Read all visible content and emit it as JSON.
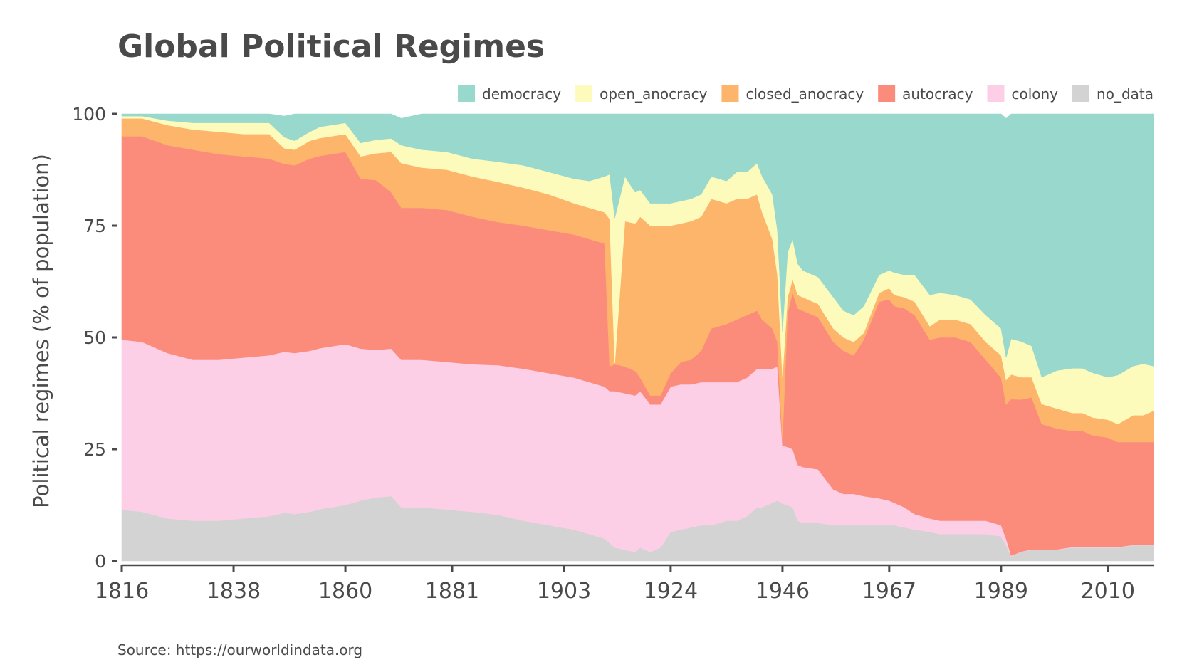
{
  "chart_data": {
    "type": "area",
    "stacked": true,
    "title": "Global Political Regimes",
    "xlabel": "",
    "ylabel": "Political regimes (% of population)",
    "xlim": [
      1816,
      2019
    ],
    "ylim": [
      0,
      100
    ],
    "yticks": [
      0,
      25,
      50,
      75,
      100
    ],
    "ytick_labels": [
      "0",
      "25",
      "50",
      "75",
      "100"
    ],
    "xticks": [
      1816,
      1838,
      1860,
      1881,
      1903,
      1924,
      1946,
      1967,
      1989,
      2010
    ],
    "xtick_labels": [
      "1816",
      "1838",
      "1860",
      "1881",
      "1903",
      "1924",
      "1946",
      "1967",
      "1989",
      "2010"
    ],
    "legend_position": "top-right",
    "source": "Source: https://ourworldindata.org",
    "x": [
      1816,
      1820,
      1825,
      1830,
      1835,
      1840,
      1845,
      1848,
      1850,
      1853,
      1855,
      1860,
      1863,
      1866,
      1869,
      1871,
      1875,
      1880,
      1885,
      1890,
      1895,
      1900,
      1905,
      1908,
      1911,
      1912,
      1913,
      1915,
      1917,
      1918,
      1920,
      1922,
      1924,
      1926,
      1928,
      1930,
      1932,
      1935,
      1937,
      1939,
      1941,
      1942,
      1944,
      1945,
      1946,
      1947,
      1948,
      1949,
      1950,
      1953,
      1956,
      1958,
      1960,
      1962,
      1965,
      1967,
      1968,
      1970,
      1972,
      1975,
      1977,
      1980,
      1983,
      1986,
      1989,
      1990,
      1991,
      1993,
      1995,
      1997,
      2000,
      2003,
      2005,
      2007,
      2010,
      2012,
      2015,
      2017,
      2019
    ],
    "series": [
      {
        "name": "no_data",
        "color": "#d3d3d3",
        "values": [
          11.5,
          11,
          9.5,
          9,
          9,
          9.5,
          10,
          10.8,
          10.5,
          11,
          11.6,
          12.5,
          13.5,
          14.2,
          14.5,
          12,
          12,
          11.5,
          11,
          10.3,
          9,
          8,
          7,
          6,
          5,
          4,
          3,
          2.5,
          2,
          3,
          2,
          3,
          6.5,
          7,
          7.5,
          8,
          8,
          9,
          9,
          10,
          12,
          12,
          13,
          13.5,
          12.8,
          12.5,
          12,
          9,
          8.5,
          8.5,
          8,
          8,
          8,
          8,
          8,
          8,
          8,
          7.5,
          7,
          6.5,
          6,
          6,
          6,
          6,
          5.5,
          3.5,
          1,
          2,
          2.5,
          2.5,
          2.5,
          3,
          3,
          3,
          3,
          3,
          3.5,
          3.5,
          3.5
        ]
      },
      {
        "name": "colony",
        "color": "#fccfe7",
        "values": [
          38,
          38,
          37,
          36,
          36,
          36,
          36,
          36,
          36,
          36,
          36,
          36,
          34,
          33,
          33,
          33,
          33,
          33,
          33,
          33.5,
          34,
          34,
          34,
          34,
          34,
          34,
          35,
          35,
          35,
          35,
          33,
          32,
          32.5,
          32.5,
          32,
          32,
          32,
          31,
          31,
          31,
          31,
          31,
          30,
          30,
          13,
          13,
          13,
          12.5,
          12.5,
          12,
          8,
          7,
          7,
          6.5,
          6,
          5.5,
          5,
          4.5,
          3.5,
          3,
          3,
          3,
          3,
          3,
          2.5,
          1.5,
          0.2,
          0.1,
          0.1,
          0.1,
          0.1,
          0.1,
          0.1,
          0.1,
          0.1,
          0.1,
          0.1,
          0.1,
          0.1
        ]
      },
      {
        "name": "autocracy",
        "color": "#fb8c7c",
        "values": [
          45.5,
          46,
          46.5,
          47,
          46,
          45,
          44,
          42,
          42,
          43,
          43,
          43,
          38,
          38,
          35,
          34,
          34,
          34,
          33,
          32,
          32,
          32,
          32,
          32,
          32,
          5.5,
          6,
          6,
          5.5,
          3,
          2,
          2,
          3,
          5,
          5.5,
          7,
          12,
          13,
          14,
          14,
          13,
          11,
          9,
          5.5,
          1.5,
          30,
          35,
          35,
          35,
          34,
          33,
          32,
          31,
          35,
          44,
          45,
          44,
          44.5,
          44.5,
          40,
          41,
          41,
          40,
          36,
          33,
          30,
          35,
          34,
          34,
          28,
          27,
          26,
          26,
          25,
          24.5,
          23.5,
          23,
          23,
          23
        ]
      },
      {
        "name": "closed_anocracy",
        "color": "#fdb46b",
        "values": [
          4,
          4,
          4.5,
          4.5,
          5,
          5,
          5.5,
          3.5,
          3.5,
          4,
          4,
          4,
          5,
          6,
          9,
          10,
          9,
          9,
          9,
          9,
          8.5,
          8,
          7,
          7,
          7,
          33,
          0.2,
          32.5,
          33,
          36,
          38,
          38,
          33,
          31,
          31,
          30,
          29,
          27,
          27,
          26,
          26,
          24,
          20,
          15,
          14,
          3.5,
          3,
          3,
          3,
          3,
          3,
          3,
          3,
          1.5,
          2,
          2.5,
          2.5,
          2.5,
          3,
          3,
          4,
          4,
          4,
          4,
          5,
          5.5,
          5.5,
          5,
          4.5,
          4.5,
          4.5,
          4,
          4,
          4,
          4,
          4,
          6,
          6,
          7
        ]
      },
      {
        "name": "open_anocracy",
        "color": "#fdfbbc",
        "values": [
          0.5,
          0.5,
          1,
          1.5,
          2,
          2.5,
          2.5,
          2.5,
          2,
          2,
          2.5,
          2.5,
          3,
          3,
          3,
          4,
          4,
          4,
          4,
          4.5,
          5,
          5,
          5.5,
          6,
          8,
          10,
          32.5,
          10,
          7,
          6,
          5,
          5,
          5,
          5,
          5,
          5,
          5,
          5,
          6,
          6,
          7,
          8,
          10,
          10,
          10,
          10,
          9,
          7,
          6,
          6,
          7,
          6,
          6,
          6,
          4,
          4,
          5,
          5,
          6,
          7,
          6,
          5.5,
          5.5,
          6,
          6,
          5,
          8,
          8,
          7,
          6,
          8.5,
          10,
          10,
          10,
          9.5,
          11,
          11,
          11.5,
          10
        ]
      },
      {
        "name": "democracy",
        "color": "#99d8cc",
        "values": [
          0.5,
          0.5,
          1.5,
          2,
          2,
          2,
          2,
          4.7,
          6,
          4,
          3,
          2,
          6.5,
          5.8,
          5.5,
          6,
          8,
          8.5,
          10,
          10.7,
          11.5,
          13,
          14.5,
          15,
          14,
          13.5,
          23.3,
          14.5,
          17.5,
          17,
          20,
          20,
          20,
          19.5,
          19,
          18,
          14,
          15,
          13,
          13,
          11,
          14,
          18,
          26,
          48.7,
          31,
          28,
          33.5,
          35,
          36.5,
          41,
          44,
          45,
          43,
          36,
          35,
          35.5,
          36,
          36,
          40.5,
          40,
          40.5,
          41.5,
          45,
          48,
          53.5,
          50.3,
          50.9,
          51.9,
          58.9,
          57.9,
          56.9,
          56.9,
          57.9,
          58.9,
          58.4,
          56.4,
          55.9,
          56.4
        ]
      }
    ]
  }
}
